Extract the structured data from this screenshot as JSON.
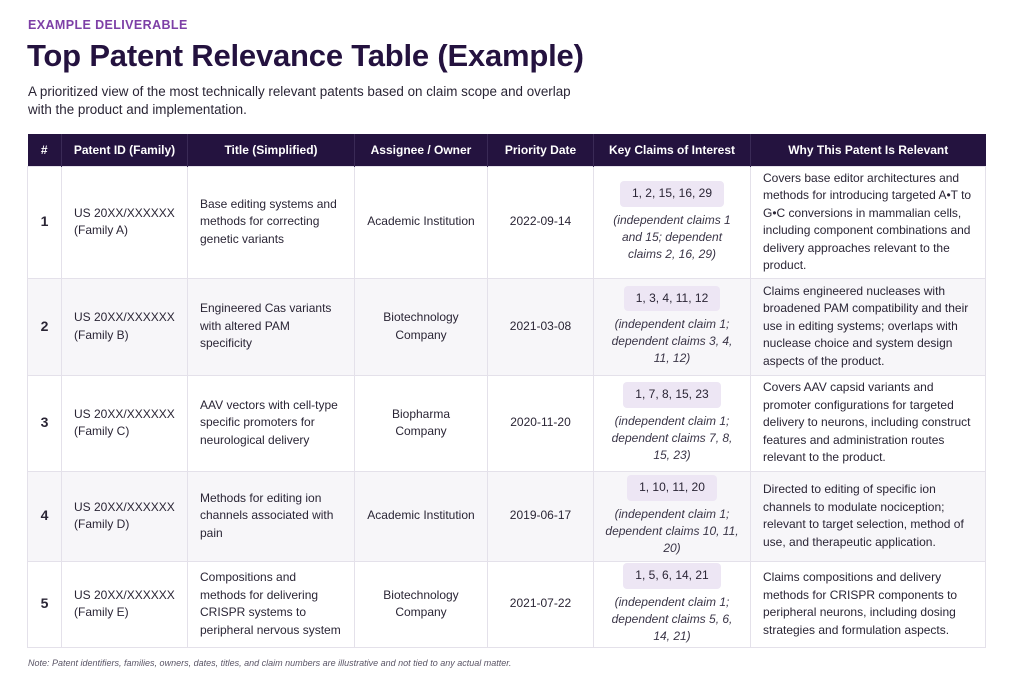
{
  "header": {
    "eyebrow": "EXAMPLE DELIVERABLE",
    "title": "Top Patent Relevance Table (Example)",
    "subtitle": "A prioritized view of the most technically relevant patents based on claim scope and overlap with the product and implementation."
  },
  "table": {
    "columns": [
      "#",
      "Patent ID (Family)",
      "Title (Simplified)",
      "Assignee / Owner",
      "Priority Date",
      "Key Claims of Interest",
      "Why This Patent Is Relevant"
    ],
    "rows": [
      {
        "num": "1",
        "patent_id": "US 20XX/XXXXXX",
        "family": "(Family A)",
        "title": "Base editing systems and methods for correcting genetic variants",
        "assignee": "Academic Institution",
        "priority_date": "2022-09-14",
        "claims": "1, 2, 15, 16, 29",
        "claims_note": "(independent claims 1 and 15; dependent claims 2, 16, 29)",
        "relevance": "Covers base editor architectures and methods for introducing targeted A•T to G•C conversions in mammalian cells, including component combinations and delivery approaches relevant to the product."
      },
      {
        "num": "2",
        "patent_id": "US 20XX/XXXXXX",
        "family": "(Family B)",
        "title": "Engineered Cas variants with altered PAM specificity",
        "assignee": "Biotechnology Company",
        "priority_date": "2021-03-08",
        "claims": "1, 3, 4, 11, 12",
        "claims_note": "(independent claim 1; dependent claims 3, 4, 11, 12)",
        "relevance": "Claims engineered nucleases with broadened PAM compatibility and their use in editing systems; overlaps with nuclease choice and system design aspects of the product."
      },
      {
        "num": "3",
        "patent_id": "US 20XX/XXXXXX",
        "family": "(Family C)",
        "title": "AAV vectors with cell-type specific promoters for neurological delivery",
        "assignee": "Biopharma Company",
        "priority_date": "2020-11-20",
        "claims": "1, 7, 8, 15, 23",
        "claims_note": "(independent claim 1; dependent claims 7, 8, 15, 23)",
        "relevance": "Covers AAV capsid variants and promoter configurations for targeted delivery to neurons, including construct features and administration routes relevant to the product."
      },
      {
        "num": "4",
        "patent_id": "US 20XX/XXXXXX",
        "family": "(Family D)",
        "title": "Methods for editing ion channels associated with pain",
        "assignee": "Academic Institution",
        "priority_date": "2019-06-17",
        "claims": "1, 10, 11, 20",
        "claims_note": "(independent claim 1; dependent claims 10, 11, 20)",
        "relevance": "Directed to editing of specific ion channels to modulate nociception; relevant to target selection, method of use, and therapeutic application."
      },
      {
        "num": "5",
        "patent_id": "US 20XX/XXXXXX",
        "family": "(Family E)",
        "title": "Compositions and methods for delivering CRISPR systems to peripheral nervous system",
        "assignee": "Biotechnology Company",
        "priority_date": "2021-07-22",
        "claims": "1, 5, 6, 14, 21",
        "claims_note": "(independent claim 1; dependent claims 5, 6, 14, 21)",
        "relevance": "Claims compositions and delivery methods for CRISPR components to peripheral neurons, including dosing strategies and formulation aspects."
      }
    ]
  },
  "footer": {
    "note": "Note: Patent identifiers, families, owners, dates, titles, and claim numbers are illustrative and not tied to any actual matter."
  },
  "colors": {
    "accent": "#7d3fa6",
    "header_bg": "#24133f",
    "pill_bg": "#ede6f4"
  }
}
